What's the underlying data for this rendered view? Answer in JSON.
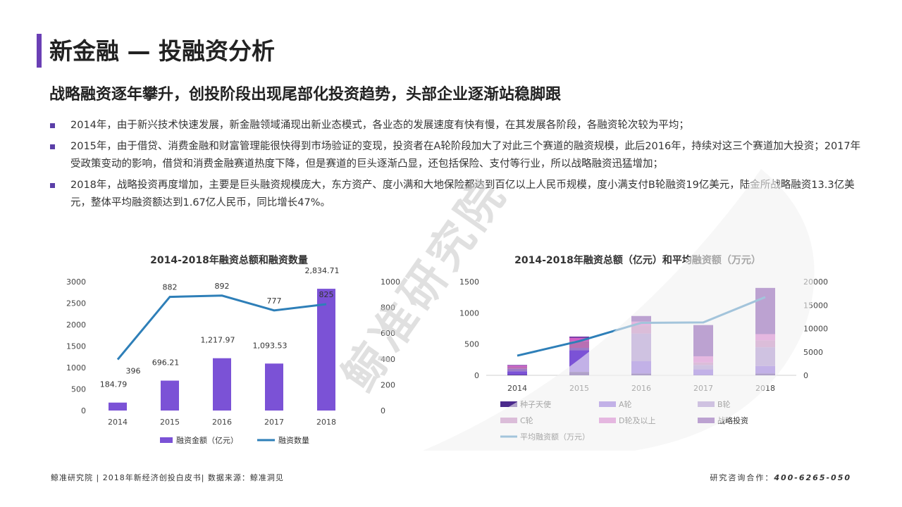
{
  "header": {
    "title": "新金融 — 投融资分析",
    "subtitle": "战略融资逐年攀升，创投阶段出现尾部化投资趋势，头部企业逐渐站稳脚跟"
  },
  "bullets": [
    "2014年，由于新兴技术快速发展，新金融领域涌现出新业态模式，各业态的发展速度有快有慢，在其发展各阶段，各融资轮次较为平均；",
    "2015年，由于借贷、消费金融和财富管理能很快得到市场验证的变现，投资者在A轮阶段加大了对此三个赛道的融资规模，此后2016年，持续对这三个赛道加大投资；2017年受政策变动的影响，借贷和消费金融赛道热度下降，但是赛道的巨头逐渐凸显，还包括保险、支付等行业，所以战略融资迅猛增加；",
    "2018年，战略投资再度增加，主要是巨头融资规模庞大，东方资产、度小满和大地保险都达到百亿以上人民币规模，度小满支付B轮融资19亿美元，陆金所战略融资13.3亿美元，整体平均融资额达到1.67亿人民币，同比增长47%。"
  ],
  "watermark": "鲸准研究院",
  "footer": {
    "left": "鲸准研究院 | 2018年新经济创投白皮书| 数据来源：鲸准洞见",
    "right_label": "研究咨询合作：",
    "right_phone": "400-6265-050"
  },
  "colors": {
    "accent": "#6a3fb5",
    "bar": "#7b52d6",
    "line": "#2e7fb8"
  },
  "chart_data": [
    {
      "type": "bar",
      "title": "2014-2018年融资总额和融资数量",
      "categories": [
        "2014",
        "2015",
        "2016",
        "2017",
        "2018"
      ],
      "series": [
        {
          "name": "融资金额（亿元）",
          "type": "bar",
          "axis": "left",
          "values": [
            184.79,
            696.21,
            1217.97,
            1093.53,
            2834.71
          ],
          "labels": [
            "184.79",
            "696.21",
            "1,217.97",
            "1,093.53",
            "2,834.71"
          ]
        },
        {
          "name": "融资数量",
          "type": "line",
          "axis": "right",
          "values": [
            396,
            882,
            892,
            777,
            825
          ],
          "labels": [
            "396",
            "882",
            "892",
            "777",
            "825"
          ]
        }
      ],
      "y_left": {
        "min": 0,
        "max": 3000,
        "ticks": [
          "0",
          "500",
          "1000",
          "1500",
          "2000",
          "2500",
          "3000"
        ]
      },
      "y_right": {
        "min": 0,
        "max": 1000,
        "ticks": [
          "0",
          "200",
          "400",
          "600",
          "800",
          "1000"
        ]
      },
      "legend": "bottom"
    },
    {
      "type": "bar",
      "title": "2014-2018年融资总额（亿元）和平均融资额（万元）",
      "stacked": true,
      "categories": [
        "2014",
        "2015",
        "2016",
        "2017",
        "2018"
      ],
      "series": [
        {
          "name": "种子天使",
          "color": "#4b2a8c",
          "values": [
            10,
            55,
            30,
            5,
            30
          ]
        },
        {
          "name": "A轮",
          "color": "#7b52d6",
          "values": [
            55,
            345,
            200,
            90,
            120
          ]
        },
        {
          "name": "B轮",
          "color": "#9b7bc8",
          "values": [
            40,
            40,
            440,
            70,
            300
          ]
        },
        {
          "name": "C轮",
          "color": "#b86fb3",
          "values": [
            30,
            110,
            130,
            40,
            110
          ]
        },
        {
          "name": "D轮及以上",
          "color": "#d15fc6",
          "values": [
            20,
            50,
            60,
            100,
            100
          ]
        },
        {
          "name": "战略投资",
          "color": "#6b2ba0",
          "values": [
            10,
            20,
            90,
            500,
            740
          ]
        },
        {
          "name": "平均融资额（万元）",
          "type": "line",
          "axis": "right",
          "color": "#2e7fb8",
          "values": [
            4200,
            7300,
            11200,
            11300,
            16700
          ]
        }
      ],
      "y_left": {
        "min": 0,
        "max": 1500,
        "ticks": [
          "0",
          "500",
          "1000",
          "1500"
        ]
      },
      "y_right": {
        "min": 0,
        "max": 20000,
        "ticks": [
          "0",
          "5000",
          "10000",
          "15000",
          "20000"
        ]
      },
      "legend": "bottom"
    }
  ]
}
